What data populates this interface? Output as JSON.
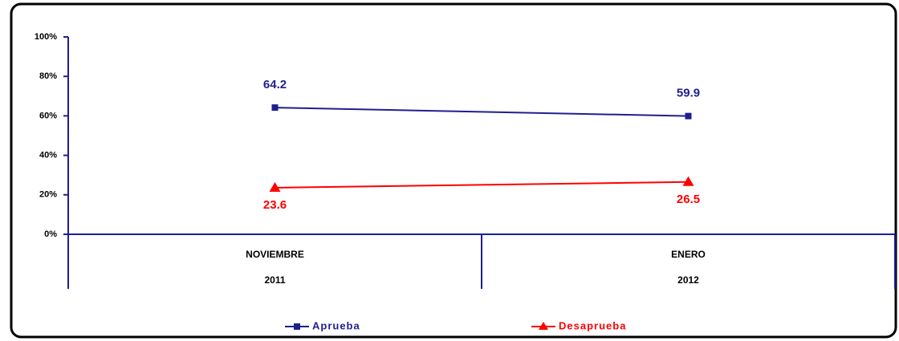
{
  "chart_data": {
    "type": "line",
    "categories": [
      "NOVIEMBRE",
      "ENERO"
    ],
    "category_years": [
      "2011",
      "2012"
    ],
    "series": [
      {
        "name": "Aprueba",
        "color": "#1f1f8f",
        "marker": "square",
        "values": [
          64.2,
          59.9
        ]
      },
      {
        "name": "Desaprueba",
        "color": "#ff0000",
        "marker": "triangle",
        "values": [
          23.6,
          26.5
        ]
      }
    ],
    "ylim": [
      0,
      100
    ],
    "yticks": [
      {
        "value": 0,
        "label": "0%"
      },
      {
        "value": 20,
        "label": "20%"
      },
      {
        "value": 40,
        "label": "40%"
      },
      {
        "value": 60,
        "label": "60%"
      },
      {
        "value": 80,
        "label": "80%"
      },
      {
        "value": 100,
        "label": "100%"
      }
    ],
    "legend": "bottom"
  }
}
